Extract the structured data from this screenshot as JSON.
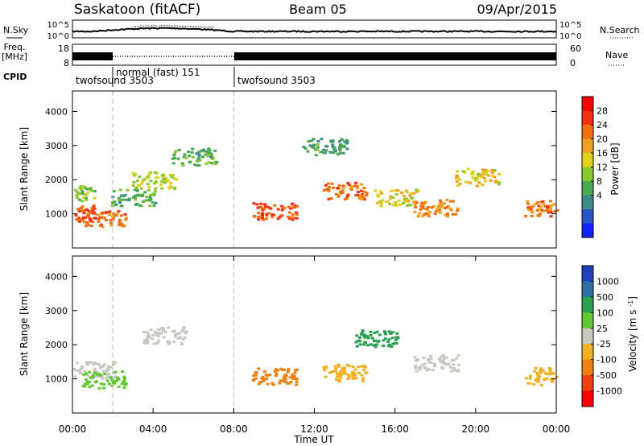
{
  "header": {
    "station": "Saskatoon (fitACF)",
    "beam": "Beam 05",
    "date": "09/Apr/2015"
  },
  "strip": {
    "nsky_label": "N.Sky",
    "nsky_ticks": [
      "10^5",
      "10^0"
    ],
    "nsearch_label": "N.Search",
    "nsearch_ticks": [
      "10^5",
      "10^0"
    ],
    "freq_label_line1": "Freq.",
    "freq_label_line2": "[MHz]",
    "freq_ticks": [
      "18",
      "8"
    ],
    "nave_label": "Nave",
    "nave_ticks": [
      "60",
      "0"
    ],
    "cpid_label": "CPID",
    "cpid_segments": [
      {
        "label": "twofsound 3503",
        "start_h": 0,
        "end_h": 2
      },
      {
        "label": "normal (fast) 151",
        "start_h": 2,
        "end_h": 8
      },
      {
        "label": "twofsound 3503",
        "start_h": 8,
        "end_h": 24
      }
    ]
  },
  "chart_data": [
    {
      "type": "heatmap",
      "panel": "power",
      "ylabel": "Slant Range [km]",
      "yticks": [
        1000,
        2000,
        3000,
        4000
      ],
      "ylim": [
        0,
        4600
      ],
      "xlim_hours": [
        0,
        24
      ],
      "colorbar_label": "Power [dB]",
      "colorbar_ticks": [
        "4",
        "8",
        "12",
        "16",
        "20",
        "24",
        "28"
      ],
      "colorbar_colors": [
        "#1020ff",
        "#2a55c8",
        "#3a8a8a",
        "#4aa850",
        "#8ac830",
        "#e0d020",
        "#f0a020",
        "#f07010",
        "#f03010",
        "#ff0000"
      ],
      "features": [
        {
          "t": 0,
          "range_km": 1050,
          "power_db": 26
        },
        {
          "t": 0,
          "range_km": 1600,
          "power_db": 14
        },
        {
          "t": 1.5,
          "range_km": 900,
          "power_db": 24
        },
        {
          "t": 3,
          "range_km": 1500,
          "power_db": 12
        },
        {
          "t": 4,
          "range_km": 2000,
          "power_db": 16
        },
        {
          "t": 6,
          "range_km": 2700,
          "power_db": 12
        },
        {
          "t": 10,
          "range_km": 1100,
          "power_db": 26
        },
        {
          "t": 12.5,
          "range_km": 3000,
          "power_db": 10
        },
        {
          "t": 13.5,
          "range_km": 1700,
          "power_db": 24
        },
        {
          "t": 16,
          "range_km": 1500,
          "power_db": 18
        },
        {
          "t": 18,
          "range_km": 1200,
          "power_db": 22
        },
        {
          "t": 20,
          "range_km": 2100,
          "power_db": 18
        },
        {
          "t": 23.5,
          "range_km": 1200,
          "power_db": 24
        }
      ]
    },
    {
      "type": "heatmap",
      "panel": "velocity",
      "ylabel": "Slant Range [km]",
      "yticks": [
        1000,
        2000,
        3000,
        4000
      ],
      "ylim": [
        0,
        4600
      ],
      "xlim_hours": [
        0,
        24
      ],
      "xticks": [
        "00:00",
        "04:00",
        "08:00",
        "12:00",
        "16:00",
        "20:00",
        "00:00"
      ],
      "xlabel": "Time UT",
      "colorbar_label": "Velocity [m s^-1]",
      "colorbar_ticks": [
        "1000",
        "500",
        "100",
        "25",
        "-25",
        "-100",
        "-500",
        "-1000"
      ],
      "colorbar_colors": [
        "#2040c0",
        "#3070a0",
        "#2aa050",
        "#60c830",
        "#c8c8c0",
        "#f0b020",
        "#f08010",
        "#f04010",
        "#ff0000"
      ],
      "features": [
        {
          "t": 1,
          "range_km": 1300,
          "velocity": 0
        },
        {
          "t": 1.5,
          "range_km": 1000,
          "velocity": 300
        },
        {
          "t": 4.5,
          "range_km": 2300,
          "velocity": 0
        },
        {
          "t": 10,
          "range_km": 1100,
          "velocity": -400
        },
        {
          "t": 13.5,
          "range_km": 1200,
          "velocity": -300
        },
        {
          "t": 15,
          "range_km": 2200,
          "velocity": 500
        },
        {
          "t": 18,
          "range_km": 1500,
          "velocity": 0
        },
        {
          "t": 23.5,
          "range_km": 1100,
          "velocity": -200
        }
      ]
    }
  ]
}
